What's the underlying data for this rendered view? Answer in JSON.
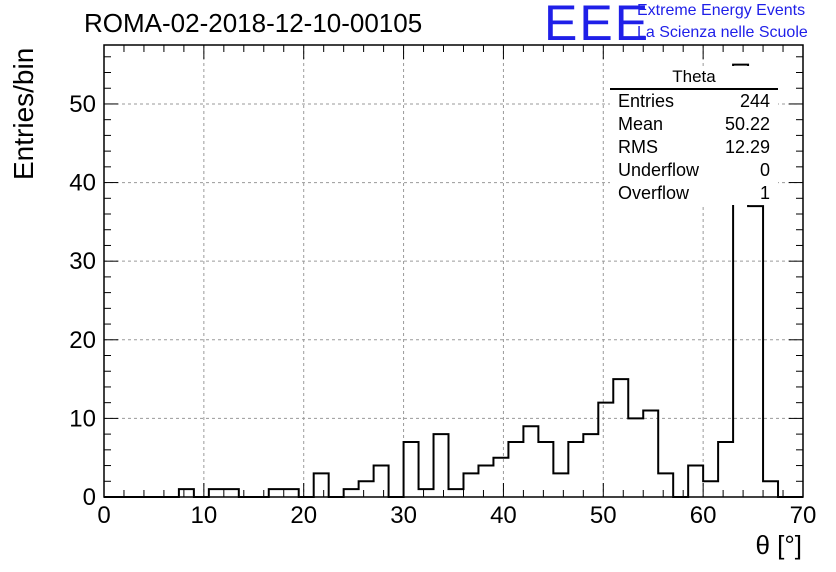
{
  "title": "ROMA-02-2018-12-10-00105",
  "logo": {
    "mark": "EEE",
    "line1": "Extreme Energy Events",
    "line2": "La Scienza nelle Scuole",
    "color": "#1f1fe8"
  },
  "stats_box": {
    "title": "Theta",
    "rows": [
      {
        "label": "Entries",
        "value": "244"
      },
      {
        "label": "Mean",
        "value": "50.22"
      },
      {
        "label": "RMS",
        "value": "12.29"
      },
      {
        "label": "Underflow",
        "value": "0"
      },
      {
        "label": "Overflow",
        "value": "1"
      }
    ]
  },
  "chart_data": {
    "type": "histogram",
    "title": "ROMA-02-2018-12-10-00105",
    "xlabel": "θ [°]",
    "ylabel": "Entries/bin",
    "xlim": [
      0,
      70
    ],
    "ylim": [
      0,
      57.5
    ],
    "grid": true,
    "xticks": [
      0,
      10,
      20,
      30,
      40,
      50,
      60,
      70
    ],
    "yticks": [
      0,
      10,
      20,
      30,
      40,
      50
    ],
    "bin_width": 1.5,
    "bin_edges_start": 0,
    "values": [
      0,
      0,
      0,
      0,
      0,
      1,
      0,
      1,
      1,
      0,
      0,
      1,
      1,
      0,
      3,
      0,
      1,
      2,
      4,
      0,
      7,
      1,
      8,
      1,
      3,
      4,
      5,
      7,
      9,
      7,
      3,
      7,
      8,
      12,
      15,
      10,
      11,
      3,
      0,
      4,
      2,
      7,
      55,
      37,
      2,
      0,
      0
    ]
  }
}
